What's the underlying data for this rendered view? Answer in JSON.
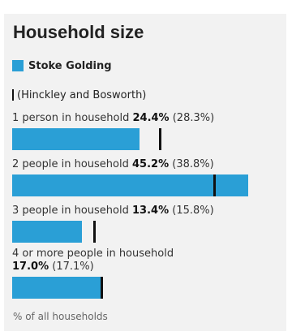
{
  "chart_data": {
    "type": "bar",
    "title": "Household size",
    "series": [
      {
        "name": "Stoke Golding",
        "color": "#2a9fd6",
        "values": [
          24.4,
          45.2,
          13.4,
          17.0
        ]
      },
      {
        "name": "(Hinckley and Bosworth)",
        "color": "#111111",
        "values": [
          28.3,
          38.8,
          15.8,
          17.1
        ]
      }
    ],
    "categories": [
      "1 person in household",
      "2 people in household",
      "3 people in household",
      "4 or more people in household"
    ],
    "value_labels": [
      "24.4%",
      "45.2%",
      "13.4%",
      "17.0%"
    ],
    "comparison_labels": [
      "(28.3%)",
      "(38.8%)",
      "(15.8%)",
      "(17.1%)"
    ],
    "xlim": [
      0,
      50
    ],
    "footer": "% of all households"
  }
}
